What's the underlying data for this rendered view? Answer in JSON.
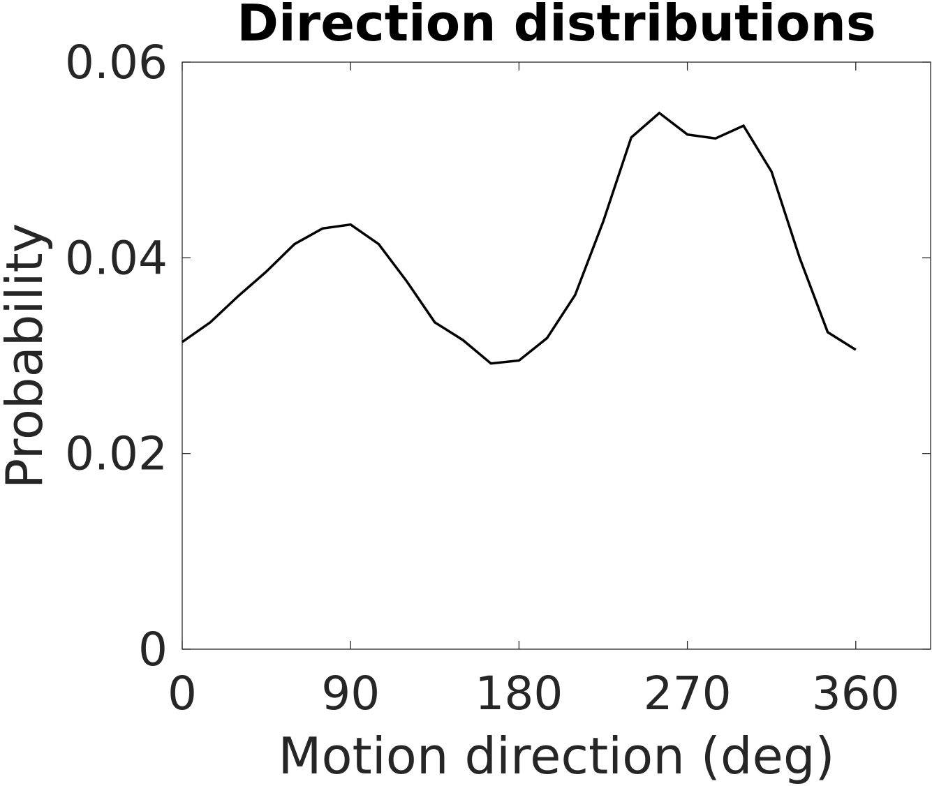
{
  "chart_data": {
    "type": "line",
    "title": "Direction distributions",
    "xlabel": "Motion direction (deg)",
    "ylabel": "Probability",
    "xlim": [
      0,
      400
    ],
    "ylim": [
      0,
      0.06
    ],
    "xticks": [
      0,
      90,
      180,
      270,
      360
    ],
    "xtick_labels": [
      "0",
      "90",
      "180",
      "270",
      "360"
    ],
    "yticks": [
      0,
      0.02,
      0.04,
      0.06
    ],
    "ytick_labels": [
      "0",
      "0.02",
      "0.04",
      "0.06"
    ],
    "grid": false,
    "series": [
      {
        "color": "#000000",
        "x": [
          0,
          15,
          30,
          45,
          60,
          75,
          90,
          105,
          120,
          135,
          150,
          165,
          180,
          195,
          210,
          225,
          240,
          255,
          270,
          285,
          300,
          315,
          330,
          345,
          360
        ],
        "y": [
          0.0314,
          0.0334,
          0.0361,
          0.0386,
          0.0414,
          0.043,
          0.0434,
          0.0414,
          0.0376,
          0.0334,
          0.0316,
          0.0292,
          0.0295,
          0.0318,
          0.0362,
          0.0437,
          0.0523,
          0.0548,
          0.0526,
          0.0522,
          0.0535,
          0.0488,
          0.04,
          0.0324,
          0.0306
        ]
      }
    ]
  }
}
